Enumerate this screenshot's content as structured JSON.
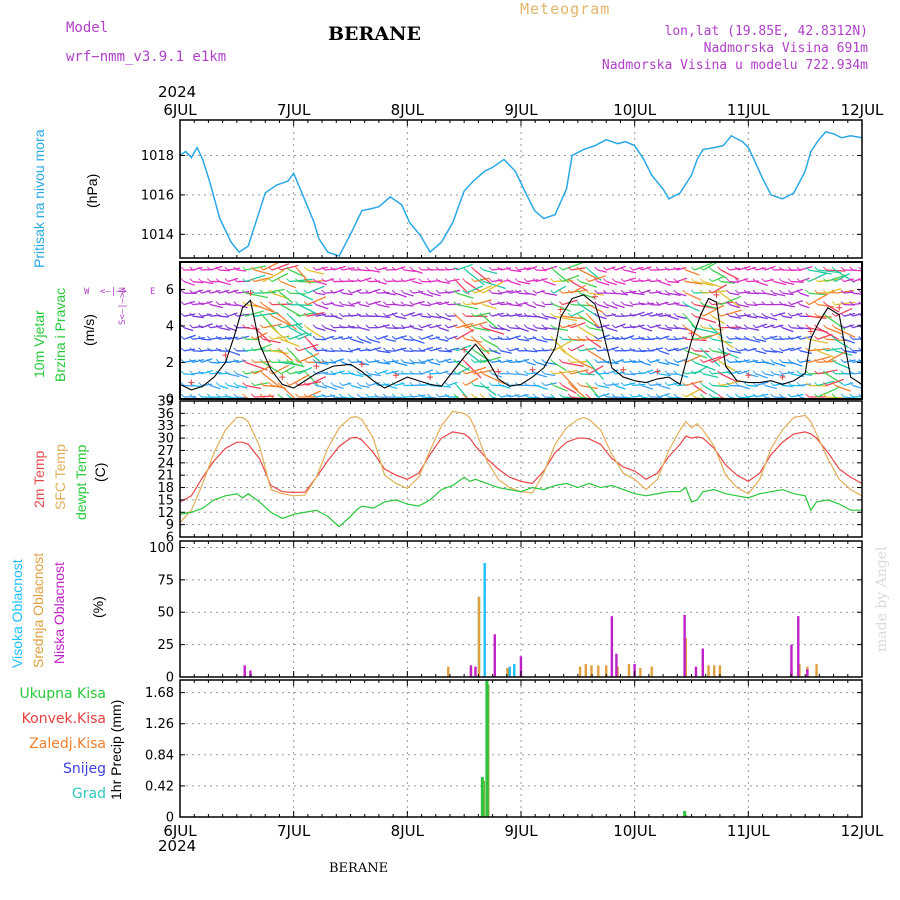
{
  "header": {
    "model_label": "Model",
    "model_name": "wrf−nmm_v3.9.1  e1km",
    "title": "BERANE",
    "meteogram_label": "Meteogram",
    "coords": "lon,lat (19.85E, 42.8312N)",
    "altitude": "Nadmorska Visina 691m",
    "model_altitude": "Nadmorska Visina u modelu 722.934m",
    "year_top": "2024",
    "year_bottom": "2024",
    "footer_station": "BERANE",
    "made_by": "made by Angel"
  },
  "colors": {
    "pressure": "#2aa8e6",
    "temp2m": "#e8474a",
    "sfc": "#e2ae58",
    "dewpt": "#28c83a",
    "high_cloud": "#1ec0ff",
    "mid_cloud": "#e0a040",
    "low_cloud": "#c020c8",
    "total_precip": "#2cc43c",
    "conv_precip": "#e84040",
    "frozen": "#f08030",
    "snow": "#4040e0",
    "hail": "#30c8c0"
  },
  "time_axis": {
    "labels": [
      "6JUL",
      "7JUL",
      "8JUL",
      "9JUL",
      "10JUL",
      "11JUL",
      "12JUL"
    ]
  },
  "panel_labels": {
    "pressure": {
      "title": "Pritisak na nivou mora",
      "unit": "(hPa)"
    },
    "wind": {
      "title1": "10m Vjetar",
      "title2": "Brzina i Pravac",
      "unit": "(m/s)",
      "compass": [
        "W",
        "<–|–>",
        "E",
        "S<–|–>N"
      ]
    },
    "temp": {
      "t1": "2m Temp",
      "t2": "SFC Temp",
      "t3": "dewpt Temp",
      "unit": "(C)"
    },
    "cloud": {
      "c1": "Visoka Oblacnost",
      "c2": "Srednja Oblacnost",
      "c3": "Niska Oblacnost",
      "unit": "(%)"
    },
    "precip": {
      "unit": "1hr Precip (mm)"
    }
  },
  "precip_legend": [
    "Ukupna Kisa",
    "Konvek.Kisa",
    "Zaledj.Kisa",
    "Snijeg",
    "Grad"
  ],
  "chart_data": [
    {
      "type": "line",
      "name": "pressure",
      "ylabel": "(hPa)",
      "ylim": [
        1012.8,
        1019.8
      ],
      "yticks": [
        1014,
        1016,
        1018
      ],
      "grid": true,
      "x_days": [
        0.0,
        0.05,
        0.1,
        0.15,
        0.2,
        0.27,
        0.35,
        0.45,
        0.52,
        0.6,
        0.65,
        0.75,
        0.85,
        0.95,
        1.0,
        1.08,
        1.18,
        1.22,
        1.3,
        1.4,
        1.5,
        1.6,
        1.68,
        1.75,
        1.85,
        1.95,
        2.02,
        2.12,
        2.2,
        2.3,
        2.4,
        2.5,
        2.58,
        2.68,
        2.75,
        2.85,
        2.95,
        3.05,
        3.12,
        3.2,
        3.3,
        3.4,
        3.45,
        3.55,
        3.65,
        3.75,
        3.85,
        3.92,
        4.0,
        4.08,
        4.15,
        4.25,
        4.3,
        4.4,
        4.5,
        4.55,
        4.6,
        4.7,
        4.78,
        4.85,
        4.95,
        5.0,
        5.05,
        5.12,
        5.2,
        5.3,
        5.4,
        5.5,
        5.55,
        5.62,
        5.68,
        5.75,
        5.82,
        5.9,
        6.0
      ],
      "series": [
        {
          "values": [
            1018.0,
            1018.2,
            1017.9,
            1018.4,
            1017.8,
            1016.5,
            1014.8,
            1013.6,
            1013.1,
            1013.4,
            1014.3,
            1016.1,
            1016.5,
            1016.7,
            1017.1,
            1016.0,
            1014.6,
            1013.8,
            1013.1,
            1012.9,
            1014.0,
            1015.2,
            1015.3,
            1015.4,
            1015.9,
            1015.5,
            1014.6,
            1013.9,
            1013.1,
            1013.6,
            1014.6,
            1016.2,
            1016.7,
            1017.2,
            1017.4,
            1017.8,
            1017.2,
            1016.0,
            1015.2,
            1014.8,
            1015.0,
            1016.3,
            1018.0,
            1018.3,
            1018.5,
            1018.8,
            1018.6,
            1018.7,
            1018.5,
            1017.8,
            1017.0,
            1016.3,
            1015.8,
            1016.1,
            1017.0,
            1017.8,
            1018.3,
            1018.4,
            1018.5,
            1019.0,
            1018.7,
            1018.4,
            1017.8,
            1016.9,
            1016.0,
            1015.8,
            1016.1,
            1017.2,
            1018.2,
            1018.8,
            1019.2,
            1019.1,
            1018.9,
            1019.0,
            1018.9
          ]
        }
      ]
    },
    {
      "type": "line",
      "name": "wind speed (10m)",
      "ylabel": "(m/s)",
      "ylim": [
        0,
        7.5
      ],
      "yticks": [
        0,
        2,
        4,
        6
      ],
      "x_days": [
        0.0,
        0.1,
        0.2,
        0.3,
        0.4,
        0.48,
        0.55,
        0.62,
        0.7,
        0.8,
        0.9,
        1.0,
        1.1,
        1.2,
        1.35,
        1.5,
        1.6,
        1.7,
        1.8,
        1.9,
        2.0,
        2.1,
        2.2,
        2.3,
        2.4,
        2.5,
        2.6,
        2.7,
        2.8,
        2.9,
        3.0,
        3.1,
        3.2,
        3.3,
        3.35,
        3.45,
        3.55,
        3.65,
        3.7,
        3.8,
        3.9,
        4.0,
        4.1,
        4.2,
        4.3,
        4.4,
        4.5,
        4.58,
        4.65,
        4.72,
        4.8,
        4.9,
        5.0,
        5.1,
        5.2,
        5.3,
        5.4,
        5.5,
        5.55,
        5.62,
        5.7,
        5.8,
        5.9,
        6.0
      ],
      "series": [
        {
          "name": "speed",
          "values": [
            0.8,
            0.5,
            0.7,
            1.2,
            2.0,
            3.5,
            5.0,
            5.4,
            3.0,
            1.6,
            0.8,
            0.6,
            1.0,
            1.4,
            1.8,
            1.9,
            1.5,
            1.0,
            0.6,
            0.9,
            1.2,
            1.0,
            0.8,
            0.7,
            1.5,
            2.3,
            3.0,
            2.2,
            1.1,
            0.7,
            0.8,
            1.2,
            1.7,
            2.8,
            4.5,
            5.5,
            5.7,
            5.2,
            4.2,
            1.7,
            1.2,
            1.0,
            0.9,
            1.1,
            1.2,
            0.8,
            3.2,
            4.6,
            5.5,
            5.3,
            1.8,
            1.0,
            0.9,
            0.9,
            1.0,
            0.8,
            1.0,
            1.4,
            3.3,
            4.2,
            5.0,
            4.6,
            1.2,
            0.8
          ]
        }
      ]
    },
    {
      "type": "line",
      "name": "temperatures",
      "ylabel": "(C)",
      "ylim": [
        6,
        39
      ],
      "yticks": [
        6,
        9,
        12,
        15,
        18,
        21,
        24,
        27,
        30,
        33,
        36,
        39
      ],
      "grid": true,
      "x_days": [
        0.0,
        0.1,
        0.2,
        0.3,
        0.4,
        0.5,
        0.55,
        0.6,
        0.7,
        0.8,
        0.9,
        1.0,
        1.1,
        1.2,
        1.3,
        1.4,
        1.5,
        1.55,
        1.6,
        1.7,
        1.8,
        1.9,
        2.0,
        2.1,
        2.2,
        2.3,
        2.4,
        2.5,
        2.55,
        2.6,
        2.7,
        2.8,
        2.9,
        3.0,
        3.1,
        3.2,
        3.3,
        3.4,
        3.5,
        3.55,
        3.6,
        3.7,
        3.8,
        3.9,
        4.0,
        4.1,
        4.2,
        4.3,
        4.4,
        4.45,
        4.5,
        4.55,
        4.6,
        4.7,
        4.8,
        4.9,
        5.0,
        5.1,
        5.2,
        5.3,
        5.4,
        5.5,
        5.55,
        5.6,
        5.7,
        5.8,
        5.9,
        6.0
      ],
      "series": [
        {
          "name": "2m Temp",
          "values": [
            14.5,
            16.0,
            20.5,
            24.5,
            27.5,
            29.0,
            29.0,
            28.5,
            25.0,
            18.5,
            17.0,
            16.8,
            16.9,
            20.5,
            24.5,
            28.0,
            30.0,
            30.2,
            29.5,
            26.5,
            22.5,
            21.0,
            20.0,
            21.5,
            26.0,
            30.0,
            31.5,
            31.0,
            30.0,
            28.0,
            25.0,
            22.5,
            20.5,
            19.5,
            19.0,
            22.0,
            26.5,
            29.0,
            30.0,
            30.0,
            29.8,
            28.5,
            25.0,
            23.0,
            22.0,
            20.0,
            21.5,
            25.5,
            28.5,
            30.5,
            30.0,
            30.3,
            30.0,
            27.5,
            23.5,
            21.0,
            19.5,
            21.5,
            26.0,
            29.0,
            31.0,
            31.5,
            31.0,
            30.0,
            26.5,
            22.5,
            20.5,
            19.0
          ]
        },
        {
          "name": "SFC Temp",
          "values": [
            9.5,
            12.5,
            19.0,
            26.5,
            32.0,
            35.0,
            35.0,
            34.0,
            28.0,
            17.5,
            16.5,
            16.0,
            16.2,
            20.5,
            27.5,
            32.5,
            35.0,
            35.2,
            34.5,
            30.0,
            21.0,
            19.0,
            17.8,
            20.5,
            27.0,
            33.0,
            36.5,
            36.0,
            35.0,
            32.0,
            24.5,
            20.0,
            18.0,
            17.0,
            16.7,
            21.5,
            28.5,
            32.5,
            34.5,
            35.0,
            34.5,
            32.0,
            26.0,
            21.5,
            20.0,
            17.5,
            20.0,
            27.0,
            32.0,
            34.0,
            32.5,
            33.5,
            32.0,
            28.0,
            21.0,
            18.0,
            16.5,
            20.0,
            27.5,
            32.0,
            35.0,
            35.5,
            34.0,
            31.0,
            25.0,
            20.0,
            17.5,
            16.0
          ]
        },
        {
          "name": "dewpt Temp",
          "values": [
            11.5,
            12.0,
            13.0,
            15.0,
            16.0,
            16.5,
            15.5,
            16.5,
            14.5,
            12.0,
            10.5,
            11.5,
            12.0,
            12.5,
            11.0,
            8.5,
            11.0,
            12.5,
            13.5,
            13.0,
            14.5,
            15.0,
            14.0,
            13.5,
            15.0,
            17.5,
            18.5,
            20.5,
            19.5,
            20.0,
            19.0,
            18.0,
            17.5,
            17.0,
            18.0,
            17.5,
            18.5,
            19.0,
            18.0,
            18.5,
            19.0,
            18.0,
            18.5,
            17.5,
            16.5,
            16.0,
            16.5,
            17.0,
            17.0,
            18.0,
            14.5,
            15.0,
            17.0,
            17.5,
            16.5,
            16.0,
            15.5,
            16.5,
            17.0,
            17.5,
            16.5,
            16.0,
            12.5,
            14.5,
            15.0,
            14.0,
            12.5,
            12.5
          ]
        }
      ]
    },
    {
      "type": "bar",
      "name": "cloudiness",
      "ylabel": "(%)",
      "ylim": [
        0,
        105
      ],
      "yticks": [
        0,
        25,
        50,
        75,
        100
      ],
      "grid": true,
      "series": [
        {
          "name": "Visoka Oblacnost",
          "bars": [
            [
              2.65,
              62
            ],
            [
              2.7,
              88
            ],
            [
              2.92,
              8
            ],
            [
              2.96,
              10
            ]
          ]
        },
        {
          "name": "Srednja Oblacnost",
          "bars": [
            [
              2.36,
              8
            ],
            [
              2.56,
              8
            ],
            [
              2.63,
              62
            ],
            [
              2.88,
              7
            ],
            [
              3.52,
              8
            ],
            [
              3.57,
              10
            ],
            [
              3.62,
              9
            ],
            [
              3.68,
              9
            ],
            [
              3.75,
              9
            ],
            [
              3.85,
              8
            ],
            [
              3.95,
              10
            ],
            [
              4.05,
              7
            ],
            [
              4.15,
              8
            ],
            [
              4.45,
              30
            ],
            [
              4.6,
              10
            ],
            [
              4.65,
              9
            ],
            [
              4.7,
              9
            ],
            [
              4.75,
              9
            ],
            [
              5.38,
              6
            ],
            [
              5.45,
              10
            ],
            [
              5.52,
              8
            ],
            [
              5.6,
              10
            ]
          ]
        },
        {
          "name": "Niska Oblacnost",
          "bars": [
            [
              0.55,
              9
            ],
            [
              0.6,
              5
            ],
            [
              2.54,
              9
            ],
            [
              2.58,
              8
            ],
            [
              2.75,
              33
            ],
            [
              2.98,
              16
            ],
            [
              3.78,
              47
            ],
            [
              3.82,
              18
            ],
            [
              3.98,
              10
            ],
            [
              4.42,
              48
            ],
            [
              4.52,
              8
            ],
            [
              4.58,
              22
            ],
            [
              5.36,
              25
            ],
            [
              5.42,
              47
            ],
            [
              5.5,
              6
            ]
          ]
        }
      ]
    },
    {
      "type": "bar",
      "name": "1hr precipitation",
      "ylabel": "1hr Precip (mm)",
      "ylim": [
        0,
        1.85
      ],
      "yticks": [
        0,
        0.42,
        0.84,
        1.26,
        1.68
      ],
      "grid": true,
      "series": [
        {
          "name": "Ukupna Kisa",
          "bars": [
            [
              2.66,
              0.54
            ],
            [
              2.7,
              1.84
            ],
            [
              4.44,
              0.08
            ]
          ]
        },
        {
          "name": "Konvek.Kisa",
          "bars": []
        },
        {
          "name": "Zaledj.Kisa",
          "bars": []
        },
        {
          "name": "Snijeg",
          "bars": []
        },
        {
          "name": "Grad",
          "bars": []
        }
      ]
    }
  ]
}
